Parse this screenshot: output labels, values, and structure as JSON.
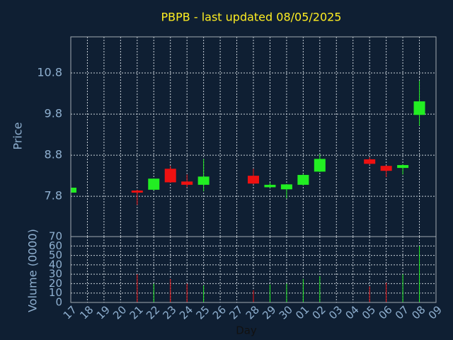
{
  "chart_data": {
    "type": "candlestick",
    "title": "PBPB - last updated 08/05/2025",
    "xlabel": "Day",
    "ylabel": "Price",
    "volume_label": "Volume (0000)",
    "categories": [
      "17",
      "18",
      "19",
      "20",
      "21",
      "22",
      "23",
      "24",
      "25",
      "26",
      "27",
      "28",
      "29",
      "30",
      "01",
      "02",
      "03",
      "04",
      "05",
      "06",
      "07",
      "08",
      "09"
    ],
    "open": [
      7.89,
      null,
      null,
      null,
      7.94,
      7.96,
      8.47,
      8.16,
      8.08,
      null,
      null,
      8.3,
      8.02,
      7.97,
      8.08,
      8.4,
      null,
      null,
      8.7,
      8.54,
      8.49,
      9.78,
      null
    ],
    "high": [
      8.01,
      null,
      null,
      null,
      7.96,
      8.23,
      8.54,
      8.33,
      8.71,
      null,
      null,
      8.47,
      8.13,
      8.1,
      8.35,
      8.82,
      null,
      null,
      8.75,
      8.55,
      8.58,
      10.61,
      null
    ],
    "low": [
      7.89,
      null,
      null,
      null,
      7.59,
      7.94,
      8.13,
      8.02,
      7.92,
      null,
      null,
      8.09,
      8.01,
      7.75,
      8.06,
      8.39,
      null,
      null,
      8.57,
      8.27,
      8.33,
      9.52,
      null
    ],
    "close": [
      8.01,
      null,
      null,
      null,
      7.89,
      8.23,
      8.14,
      8.08,
      8.28,
      null,
      null,
      8.11,
      8.08,
      8.09,
      8.32,
      8.71,
      null,
      null,
      8.59,
      8.42,
      8.56,
      10.11,
      null
    ],
    "volume": [
      null,
      null,
      null,
      null,
      30,
      20,
      25,
      20,
      18,
      null,
      null,
      13,
      19,
      20,
      25,
      28,
      null,
      null,
      17,
      21,
      30,
      60,
      null
    ],
    "up_color": "#22ee22",
    "down_color": "#ee1111",
    "ylim": [
      6.82,
      11.68
    ],
    "yticks": [
      7.8,
      8.8,
      9.8,
      10.8
    ],
    "volume_ylim": [
      0,
      70
    ],
    "volume_yticks": [
      0,
      10,
      20,
      30,
      40,
      50,
      60,
      70
    ],
    "grid": true
  }
}
